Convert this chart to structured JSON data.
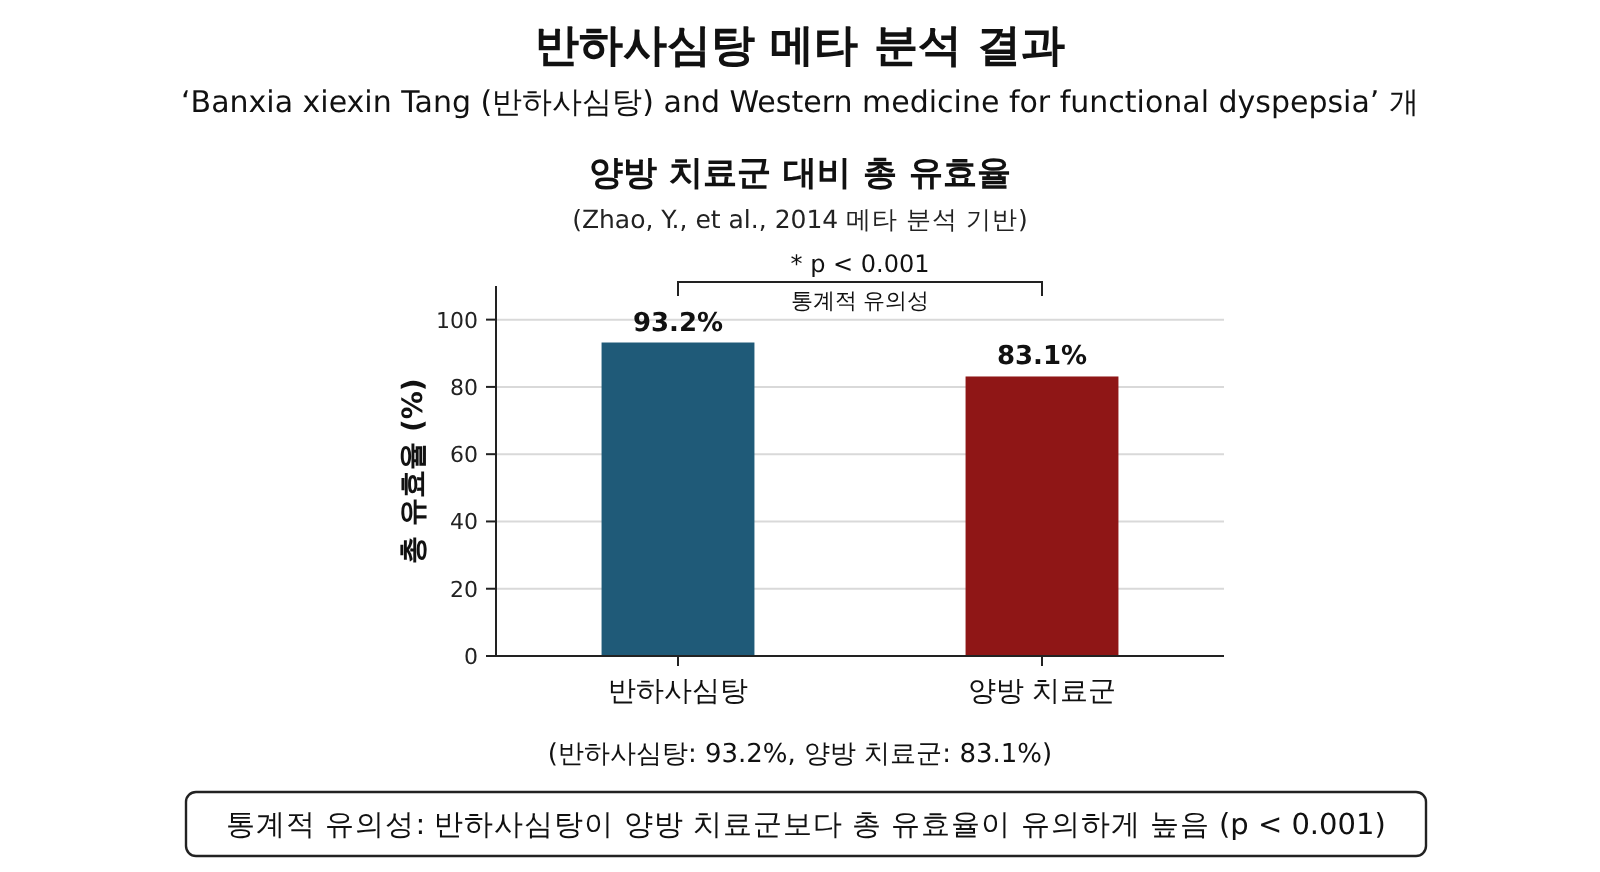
{
  "chart_data": {
    "type": "bar",
    "title": "반하사심탕 메타 분석 결과",
    "subtitle": "‘Banxia xiexin Tang (반하사심탕) and Western medicine for functional dyspepsia’ 개",
    "annotations": [
      "양방 치료군 대비 총 유효율",
      "(Zhao, Y., et al., 2014 메타 분석 기반)",
      "* p < 0.001",
      "통계적 유의성",
      "(반하사심탕: 93.2%, 양방 치료군: 83.1%)",
      "통계적 유의성: 반하사심탕이 양방 치료군보다 총 유효율이 유의하게 높음 (p < 0.001)"
    ],
    "ylabel": "총 유효율 (%)",
    "categories": [
      "반하사심탕",
      "양방 치료군"
    ],
    "values": [
      93.2,
      83.1
    ],
    "colors": [
      "#1f5a78",
      "#8f1616"
    ],
    "ylim": [
      0,
      110
    ],
    "yticks": [
      0,
      20,
      40,
      60,
      80,
      100
    ],
    "grid": "y",
    "value_labels": [
      "93.2%",
      "83.1%"
    ]
  }
}
